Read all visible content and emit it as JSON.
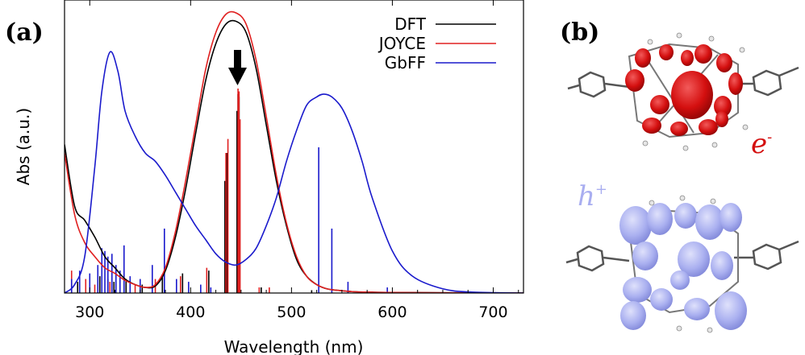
{
  "panel_a_label": "(a)",
  "panel_b_label": "(b)",
  "electron_label": "e",
  "electron_sup": "-",
  "hole_label": "h",
  "hole_sup": "+",
  "colors": {
    "DFT": "#000000",
    "JOYCE": "#e02020",
    "GbFF": "#1a1acc",
    "electron_density": "#d40f0f",
    "hole_density": "#a9aef0",
    "frame": "#000000"
  },
  "chart_data": {
    "type": "line",
    "xlabel": "Wavelength (nm)",
    "ylabel": "Abs (a.u.)",
    "xlim": [
      275,
      730
    ],
    "ylim": [
      0,
      1.0
    ],
    "xticks": [
      300,
      400,
      500,
      600,
      700
    ],
    "x_tick_labels": [
      "300",
      "400",
      "500",
      "600",
      "700"
    ],
    "grid": false,
    "legend_position": "top-right",
    "annotation": "arrow pointing down at ~447 nm",
    "annotation_x": 447,
    "series": [
      {
        "name": "DFT",
        "x": [
          275,
          285,
          295,
          305,
          315,
          325,
          335,
          345,
          355,
          365,
          375,
          385,
          395,
          405,
          415,
          425,
          435,
          445,
          455,
          465,
          475,
          485,
          495,
          505,
          515,
          525,
          535,
          545,
          560,
          580,
          600,
          650,
          730
        ],
        "y": [
          0.53,
          0.31,
          0.26,
          0.2,
          0.13,
          0.09,
          0.05,
          0.03,
          0.02,
          0.025,
          0.08,
          0.2,
          0.37,
          0.57,
          0.76,
          0.89,
          0.96,
          0.97,
          0.93,
          0.8,
          0.6,
          0.4,
          0.24,
          0.12,
          0.06,
          0.03,
          0.015,
          0.01,
          0.005,
          0.003,
          0.002,
          0.001,
          0.0
        ]
      },
      {
        "name": "JOYCE",
        "x": [
          275,
          285,
          295,
          305,
          315,
          325,
          335,
          345,
          355,
          365,
          375,
          385,
          395,
          405,
          415,
          425,
          435,
          445,
          455,
          465,
          475,
          485,
          495,
          505,
          515,
          525,
          535,
          545,
          560,
          580,
          600,
          650,
          730
        ],
        "y": [
          0.5,
          0.28,
          0.18,
          0.13,
          0.09,
          0.07,
          0.045,
          0.03,
          0.02,
          0.03,
          0.09,
          0.22,
          0.4,
          0.6,
          0.8,
          0.93,
          0.995,
          1.0,
          0.96,
          0.83,
          0.63,
          0.42,
          0.25,
          0.13,
          0.06,
          0.03,
          0.015,
          0.01,
          0.005,
          0.003,
          0.002,
          0.001,
          0.0
        ]
      },
      {
        "name": "GbFF",
        "x": [
          275,
          285,
          295,
          305,
          312,
          320,
          328,
          335,
          345,
          355,
          365,
          375,
          385,
          395,
          405,
          415,
          425,
          435,
          445,
          455,
          465,
          475,
          485,
          495,
          505,
          515,
          525,
          532,
          540,
          550,
          560,
          570,
          580,
          600,
          620,
          650,
          680,
          730
        ],
        "y": [
          0.0,
          0.03,
          0.13,
          0.45,
          0.72,
          0.86,
          0.79,
          0.65,
          0.56,
          0.5,
          0.47,
          0.42,
          0.36,
          0.3,
          0.24,
          0.19,
          0.14,
          0.11,
          0.1,
          0.12,
          0.16,
          0.24,
          0.34,
          0.47,
          0.58,
          0.67,
          0.7,
          0.71,
          0.7,
          0.66,
          0.58,
          0.47,
          0.34,
          0.15,
          0.06,
          0.015,
          0.003,
          0.0
        ]
      }
    ],
    "stick_spectra": [
      {
        "name": "DFT",
        "x": [
          288,
          310,
          318,
          324,
          336,
          352,
          372,
          392,
          418,
          434,
          436,
          446,
          447,
          448,
          470,
          520
        ],
        "y": [
          0.04,
          0.06,
          0.05,
          0.04,
          0.05,
          0.03,
          0.06,
          0.07,
          0.08,
          0.4,
          0.5,
          0.65,
          0.71,
          0.7,
          0.02,
          0.01
        ]
      },
      {
        "name": "JOYCE",
        "x": [
          282,
          296,
          305,
          320,
          345,
          365,
          390,
          416,
          435,
          437,
          447,
          448,
          449,
          468,
          478
        ],
        "y": [
          0.08,
          0.05,
          0.03,
          0.04,
          0.03,
          0.05,
          0.06,
          0.09,
          0.5,
          0.55,
          0.73,
          0.72,
          0.62,
          0.02,
          0.02
        ]
      },
      {
        "name": "GbFF",
        "x": [
          282,
          290,
          300,
          308,
          312,
          315,
          318,
          322,
          326,
          330,
          334,
          340,
          350,
          362,
          374,
          386,
          398,
          410,
          420,
          527,
          540,
          556,
          595
        ],
        "y": [
          0.05,
          0.08,
          0.07,
          0.1,
          0.16,
          0.15,
          0.13,
          0.14,
          0.1,
          0.08,
          0.17,
          0.06,
          0.05,
          0.1,
          0.23,
          0.05,
          0.04,
          0.03,
          0.02,
          0.52,
          0.23,
          0.04,
          0.02
        ]
      }
    ]
  }
}
